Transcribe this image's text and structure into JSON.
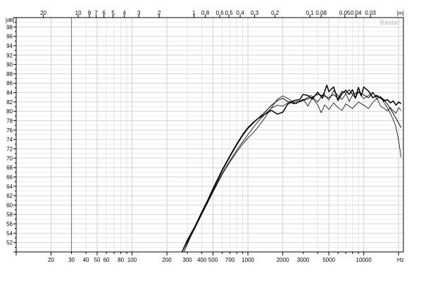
{
  "chart_data": {
    "type": "line",
    "title": "",
    "xlabel": "Hz",
    "ylabel": "[dB]",
    "top_axis_label": "[m]",
    "watermark": "Basta!",
    "x_scale": "log",
    "xlim": [
      10,
      22000
    ],
    "ylim": [
      50,
      100
    ],
    "grid": true,
    "legend": "none",
    "x_ticks": [
      {
        "value": 20,
        "label": "20"
      },
      {
        "value": 30,
        "label": "30"
      },
      {
        "value": 40,
        "label": "40"
      },
      {
        "value": 50,
        "label": "50"
      },
      {
        "value": 60,
        "label": "60"
      },
      {
        "value": 80,
        "label": "80"
      },
      {
        "value": 100,
        "label": "100"
      },
      {
        "value": 200,
        "label": "200"
      },
      {
        "value": 300,
        "label": "300"
      },
      {
        "value": 400,
        "label": "400"
      },
      {
        "value": 500,
        "label": "500"
      },
      {
        "value": 700,
        "label": "700"
      },
      {
        "value": 1000,
        "label": "1000"
      },
      {
        "value": 2000,
        "label": "2000"
      },
      {
        "value": 3000,
        "label": "3000"
      },
      {
        "value": 5000,
        "label": "5000"
      },
      {
        "value": 10000,
        "label": "10000"
      }
    ],
    "y_ticks": [
      {
        "value": 52,
        "label": "52"
      },
      {
        "value": 54,
        "label": "54"
      },
      {
        "value": 56,
        "label": "56"
      },
      {
        "value": 58,
        "label": "58"
      },
      {
        "value": 60,
        "label": "60"
      },
      {
        "value": 62,
        "label": "62"
      },
      {
        "value": 64,
        "label": "64"
      },
      {
        "value": 66,
        "label": "66"
      },
      {
        "value": 68,
        "label": "68"
      },
      {
        "value": 70,
        "label": "70"
      },
      {
        "value": 72,
        "label": "72"
      },
      {
        "value": 74,
        "label": "74"
      },
      {
        "value": 76,
        "label": "76"
      },
      {
        "value": 78,
        "label": "78"
      },
      {
        "value": 80,
        "label": "80"
      },
      {
        "value": 82,
        "label": "82"
      },
      {
        "value": 84,
        "label": "84"
      },
      {
        "value": 86,
        "label": "86"
      },
      {
        "value": 88,
        "label": "88"
      },
      {
        "value": 90,
        "label": "90"
      },
      {
        "value": 92,
        "label": "92"
      },
      {
        "value": 94,
        "label": "94"
      },
      {
        "value": 96,
        "label": "96"
      },
      {
        "value": 98,
        "label": "98"
      }
    ],
    "top_ticks": [
      {
        "value": 20,
        "label": "20"
      },
      {
        "value": 10,
        "label": "10"
      },
      {
        "value": 8,
        "label": "8"
      },
      {
        "value": 7,
        "label": "7"
      },
      {
        "value": 6,
        "label": "6"
      },
      {
        "value": 5,
        "label": "5"
      },
      {
        "value": 4,
        "label": "4"
      },
      {
        "value": 3,
        "label": "3"
      },
      {
        "value": 2,
        "label": "2"
      },
      {
        "value": 1,
        "label": "1"
      },
      {
        "value": 0.8,
        "label": "0.8"
      },
      {
        "value": 0.6,
        "label": "0.6"
      },
      {
        "value": 0.5,
        "label": "0.5"
      },
      {
        "value": 0.4,
        "label": "0.4"
      },
      {
        "value": 0.3,
        "label": "0.3"
      },
      {
        "value": 0.2,
        "label": "0.2"
      },
      {
        "value": 0.1,
        "label": "0.1"
      },
      {
        "value": 0.08,
        "label": "0.08"
      },
      {
        "value": 0.05,
        "label": "0.05"
      },
      {
        "value": 0.04,
        "label": "0.04"
      },
      {
        "value": 0.03,
        "label": "0.03"
      }
    ],
    "marker_line_x": 30,
    "series": [
      {
        "color": "#000000",
        "x": [
          270,
          300,
          350,
          400,
          450,
          500,
          600,
          700,
          800,
          900,
          1000,
          1100,
          1200,
          1400,
          1600,
          1800,
          2000,
          2200,
          2500,
          2800,
          3000,
          3300,
          3600,
          4000,
          4400,
          4800,
          5000,
          5500,
          6000,
          6500,
          7000,
          7500,
          8000,
          8500,
          9000,
          9500,
          10000,
          11000,
          12000,
          13000,
          14000,
          15000,
          16000,
          17000,
          18000,
          19000,
          20000,
          21000
        ],
        "y": [
          50,
          52.5,
          55.5,
          58.5,
          61,
          63.5,
          67.5,
          70.5,
          73,
          75,
          76.5,
          77.5,
          78.3,
          79.4,
          80.2,
          79.4,
          79.8,
          81.5,
          82.3,
          82.5,
          83.6,
          83.4,
          82.6,
          84.1,
          82.8,
          85.6,
          84.2,
          85.2,
          82.3,
          83.8,
          84.5,
          83.6,
          84.6,
          82.8,
          85.1,
          83.3,
          85.2,
          84.3,
          82.9,
          83.4,
          82.8,
          82.2,
          82.5,
          81.8,
          82.2,
          81.3,
          82,
          81.6
        ]
      },
      {
        "color": "#000000",
        "x": [
          270,
          300,
          350,
          400,
          450,
          500,
          600,
          700,
          800,
          900,
          1000,
          1200,
          1400,
          1600,
          1800,
          2000,
          2200,
          2500,
          3000,
          3500,
          4000,
          4500,
          5000,
          5500,
          6000,
          6500,
          7000,
          7500,
          8000,
          9000,
          10000,
          11000,
          12000,
          13000,
          14000,
          15000,
          16000,
          17000,
          18000,
          19000,
          20000,
          21000
        ],
        "y": [
          50,
          52.2,
          55.3,
          58.3,
          60.8,
          63.3,
          67.3,
          70.3,
          72.8,
          74.8,
          76.3,
          78.3,
          79.8,
          81.3,
          82.3,
          82.8,
          82.1,
          81.6,
          82.3,
          82.9,
          83.6,
          83.3,
          82.9,
          83.6,
          82.8,
          84.3,
          83.9,
          84.6,
          83.6,
          84.1,
          83.5,
          82.9,
          83.9,
          83.1,
          83,
          82.5,
          81.5,
          80.5,
          79.5,
          78.5,
          77.5,
          76.5
        ]
      },
      {
        "color": "#000000",
        "x": [
          280,
          320,
          360,
          400,
          450,
          500,
          600,
          700,
          800,
          900,
          1000,
          1100,
          1200,
          1400,
          1600,
          1800,
          2000,
          2200,
          2500,
          3000,
          3500,
          4000,
          4500,
          5000,
          5500,
          6000,
          6500,
          7000,
          7500,
          8000,
          8500,
          9000,
          10000,
          11000,
          12000,
          13000,
          14000,
          15000,
          16000,
          17000,
          18000,
          19000,
          20000,
          21000
        ],
        "y": [
          50,
          53.2,
          55.7,
          58,
          60.5,
          62.8,
          66.5,
          69.2,
          71.3,
          73,
          74.3,
          75.3,
          76.4,
          78.6,
          80.8,
          82.6,
          83.3,
          82.8,
          81.9,
          82.4,
          83.4,
          82,
          83.8,
          82.4,
          84.4,
          83.4,
          82.5,
          83.8,
          82.1,
          83.5,
          82.8,
          84.2,
          82.7,
          83.4,
          84.1,
          82.6,
          83.2,
          81.8,
          80.7,
          79.5,
          78.2,
          76.6,
          73.8,
          70.2
        ]
      },
      {
        "color": "#000000",
        "x": [
          280,
          320,
          360,
          400,
          450,
          500,
          600,
          700,
          800,
          900,
          1000,
          1200,
          1400,
          1600,
          1800,
          2000,
          2300,
          2600,
          3000,
          3300,
          3600,
          4000,
          4300,
          4600,
          5000,
          5500,
          6000,
          6500,
          7000,
          8000,
          9000,
          10000,
          11000,
          12000,
          13000,
          14000,
          15000,
          16000,
          17000,
          18000,
          19000,
          20000,
          21000
        ],
        "y": [
          50,
          53.5,
          56,
          58.2,
          60.8,
          63,
          66.8,
          69.5,
          71.7,
          73.5,
          75,
          77.6,
          79.4,
          80.7,
          81.3,
          81.1,
          82.1,
          81.6,
          82.6,
          81.1,
          82.9,
          81.4,
          79.7,
          81.4,
          80.4,
          81.8,
          80.8,
          80.2,
          81.6,
          80.6,
          82,
          81.3,
          80.6,
          81.9,
          82.8,
          81.1,
          80.6,
          80.1,
          80.8,
          80.1,
          79.6,
          80.8,
          80.2
        ]
      }
    ]
  }
}
